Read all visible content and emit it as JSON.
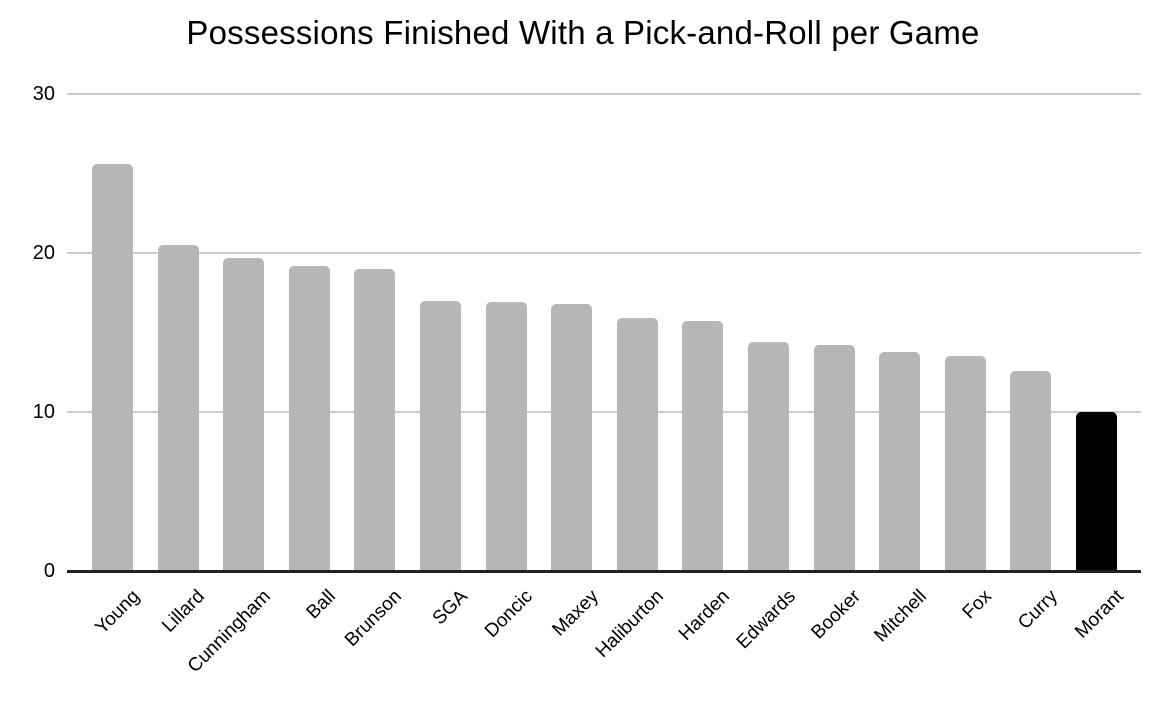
{
  "title": "Possessions Finished With a Pick-and-Roll per Game",
  "chart_data": {
    "type": "bar",
    "title": "Possessions Finished With a Pick-and-Roll per Game",
    "xlabel": "",
    "ylabel": "",
    "categories": [
      "Young",
      "Lillard",
      "Cunningham",
      "Ball",
      "Brunson",
      "SGA",
      "Doncic",
      "Maxey",
      "Haliburton",
      "Harden",
      "Edwards",
      "Booker",
      "Mitchell",
      "Fox",
      "Curry",
      "Morant"
    ],
    "values": [
      25.6,
      20.5,
      19.7,
      19.2,
      19.0,
      17.0,
      16.9,
      16.8,
      15.9,
      15.7,
      14.4,
      14.2,
      13.8,
      13.5,
      12.6,
      10.0
    ],
    "ylim": [
      0,
      30
    ],
    "yticks": [
      0,
      10,
      20,
      30
    ],
    "grid": true,
    "legend_position": "none",
    "xtick_rotation_deg": -45,
    "bar_color_default": "#b6b6b6",
    "highlight_category": "Morant",
    "highlight_color": "#000000",
    "gridline_color": "#cccccc",
    "axis_line_color": "#222222",
    "background_color": "#ffffff",
    "text_color": "#000000"
  }
}
